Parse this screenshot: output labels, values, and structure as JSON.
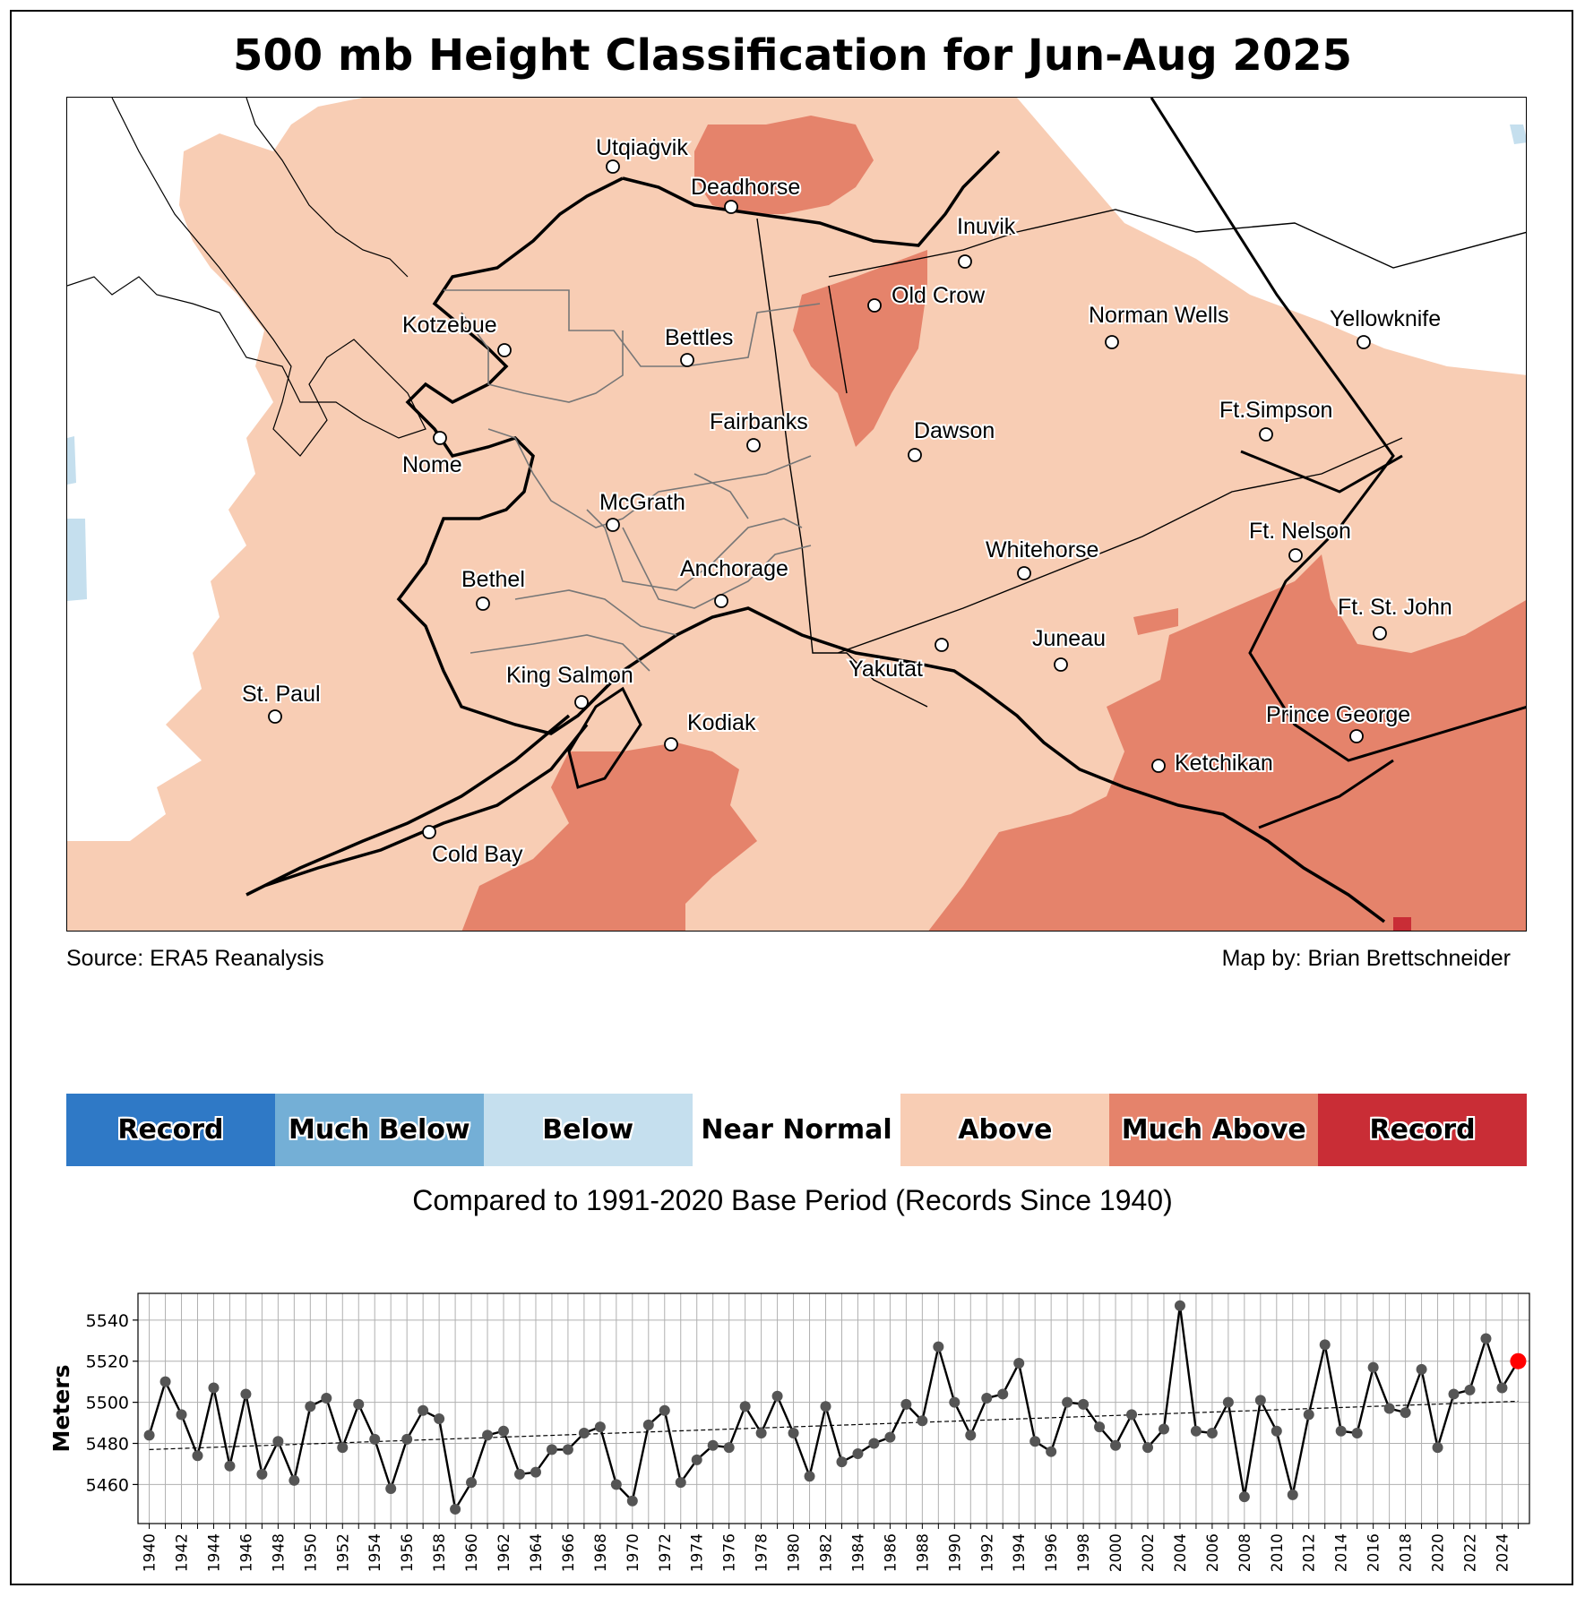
{
  "title": "500 mb Height Classification for Jun-Aug 2025",
  "source": "Source: ERA5 Reanalysis",
  "credit": "Map by: Brian Brettschneider",
  "base_period": "Compared to 1991-2020 Base Period   (Records Since 1940)",
  "legend": [
    {
      "label": "Record",
      "color": "#2f79c6"
    },
    {
      "label": "Much Below",
      "color": "#74afd6"
    },
    {
      "label": "Below",
      "color": "#c5dfee"
    },
    {
      "label": "Near Normal",
      "color": "#ffffff"
    },
    {
      "label": "Above",
      "color": "#f8cdb4"
    },
    {
      "label": "Much Above",
      "color": "#e5836b"
    },
    {
      "label": "Record",
      "color": "#c92d36"
    }
  ],
  "cities": [
    {
      "name": "Utqiaġvik"
    },
    {
      "name": "Deadhorse"
    },
    {
      "name": "Inuvik"
    },
    {
      "name": "Old Crow"
    },
    {
      "name": "Kotzebue"
    },
    {
      "name": "Bettles"
    },
    {
      "name": "Norman Wells"
    },
    {
      "name": "Yellowknife"
    },
    {
      "name": "Nome"
    },
    {
      "name": "Fairbanks"
    },
    {
      "name": "Dawson"
    },
    {
      "name": "Ft.Simpson"
    },
    {
      "name": "McGrath"
    },
    {
      "name": "Ft. Nelson"
    },
    {
      "name": "Whitehorse"
    },
    {
      "name": "Bethel"
    },
    {
      "name": "Anchorage"
    },
    {
      "name": "Ft. St. John"
    },
    {
      "name": "Juneau"
    },
    {
      "name": "Yakutat"
    },
    {
      "name": "King Salmon"
    },
    {
      "name": "St. Paul"
    },
    {
      "name": "Prince George"
    },
    {
      "name": "Kodiak"
    },
    {
      "name": "Ketchikan"
    },
    {
      "name": "Cold Bay"
    }
  ],
  "chart_data": {
    "type": "line",
    "ylabel": "Meters",
    "xlabel": "",
    "ylim": [
      5441,
      5553
    ],
    "yticks": [
      5460,
      5480,
      5500,
      5520,
      5540
    ],
    "xticks": [
      1940,
      1942,
      1944,
      1946,
      1948,
      1950,
      1952,
      1954,
      1956,
      1958,
      1960,
      1962,
      1964,
      1966,
      1968,
      1970,
      1972,
      1974,
      1976,
      1978,
      1980,
      1982,
      1984,
      1986,
      1988,
      1990,
      1992,
      1994,
      1996,
      1998,
      2000,
      2002,
      2004,
      2006,
      2008,
      2010,
      2012,
      2014,
      2016,
      2018,
      2020,
      2022,
      2024
    ],
    "grid": true,
    "x": [
      1940,
      1941,
      1942,
      1943,
      1944,
      1945,
      1946,
      1947,
      1948,
      1949,
      1950,
      1951,
      1952,
      1953,
      1954,
      1955,
      1956,
      1957,
      1958,
      1959,
      1960,
      1961,
      1962,
      1963,
      1964,
      1965,
      1966,
      1967,
      1968,
      1969,
      1970,
      1971,
      1972,
      1973,
      1974,
      1975,
      1976,
      1977,
      1978,
      1979,
      1980,
      1981,
      1982,
      1983,
      1984,
      1985,
      1986,
      1987,
      1988,
      1989,
      1990,
      1991,
      1992,
      1993,
      1994,
      1995,
      1996,
      1997,
      1998,
      1999,
      2000,
      2001,
      2002,
      2003,
      2004,
      2005,
      2006,
      2007,
      2008,
      2009,
      2010,
      2011,
      2012,
      2013,
      2014,
      2015,
      2016,
      2017,
      2018,
      2019,
      2020,
      2021,
      2022,
      2023,
      2024,
      2025
    ],
    "y": [
      5484,
      5510,
      5494,
      5474,
      5507,
      5469,
      5504,
      5465,
      5481,
      5462,
      5498,
      5502,
      5478,
      5499,
      5482,
      5458,
      5482,
      5496,
      5492,
      5448,
      5461,
      5484,
      5486,
      5465,
      5466,
      5477,
      5477,
      5485,
      5488,
      5460,
      5452,
      5489,
      5496,
      5461,
      5472,
      5479,
      5478,
      5498,
      5485,
      5503,
      5485,
      5464,
      5498,
      5471,
      5475,
      5480,
      5483,
      5499,
      5491,
      5527,
      5500,
      5484,
      5502,
      5504,
      5519,
      5481,
      5476,
      5500,
      5499,
      5488,
      5479,
      5494,
      5478,
      5487,
      5547,
      5486,
      5485,
      5500,
      5454,
      5501,
      5486,
      5455,
      5494,
      5528,
      5486,
      5485,
      5517,
      5497,
      5495,
      5516,
      5478,
      5504,
      5506,
      5531,
      5507,
      5520
    ],
    "trend": {
      "start": [
        1940,
        5477
      ],
      "end": [
        2025,
        5500.5
      ]
    },
    "highlight": {
      "x": 2025,
      "y": 5520,
      "color": "#ff0000"
    }
  }
}
